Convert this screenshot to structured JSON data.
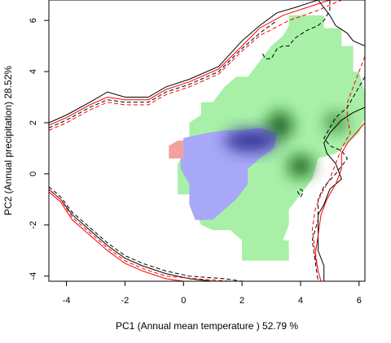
{
  "chart_data": {
    "type": "contour-density",
    "xlabel": "PC1 (Annual mean temperature ) 52.79 %",
    "ylabel": "PC2 (Annual precipitation) 28.52%",
    "xlim": [
      -4.6,
      6.2
    ],
    "ylim": [
      -4.2,
      6.8
    ],
    "xticks": [
      -4,
      -2,
      0,
      2,
      4,
      6
    ],
    "yticks": [
      -4,
      -2,
      0,
      2,
      4,
      6
    ],
    "x_tick_labels": [
      "-4",
      "-2",
      "0",
      "2",
      "4",
      "6"
    ],
    "y_tick_labels": [
      "-4",
      "-2",
      "0",
      "2",
      "4",
      "6"
    ],
    "grid": false,
    "legend": "none",
    "colors": {
      "green_region": "#a8f0a8",
      "green_dense": "#0a5a0a",
      "blue_region": "#a8a8f8",
      "blue_dense": "#28288a",
      "overlap_region": "#f4a0a0",
      "contour_1": "#000000",
      "contour_2": "#ff0000"
    },
    "series": [
      {
        "kind": "region",
        "color": "#a8f0a8",
        "points": [
          [
            3.6,
            6.2
          ],
          [
            4.8,
            6.2
          ],
          [
            4.8,
            5.7
          ],
          [
            5.4,
            5.7
          ],
          [
            5.4,
            5.0
          ],
          [
            5.8,
            5.0
          ],
          [
            5.8,
            4.0
          ],
          [
            6.0,
            4.0
          ],
          [
            6.2,
            3.2
          ],
          [
            6.2,
            2.2
          ],
          [
            6.0,
            1.6
          ],
          [
            5.6,
            1.2
          ],
          [
            5.2,
            0.8
          ],
          [
            4.6,
            0.6
          ],
          [
            4.4,
            -0.2
          ],
          [
            4.0,
            -0.8
          ],
          [
            3.6,
            -1.4
          ],
          [
            3.6,
            -2.0
          ],
          [
            3.4,
            -2.6
          ],
          [
            3.2,
            -2.6
          ],
          [
            3.6,
            -2.6
          ],
          [
            3.6,
            -3.4
          ],
          [
            2.6,
            -3.4
          ],
          [
            2.0,
            -3.4
          ],
          [
            2.0,
            -2.6
          ],
          [
            1.6,
            -2.2
          ],
          [
            1.0,
            -2.2
          ],
          [
            0.6,
            -2.0
          ],
          [
            0.4,
            -1.4
          ],
          [
            0.2,
            -0.8
          ],
          [
            -0.2,
            -0.8
          ],
          [
            -0.2,
            0.4
          ],
          [
            0.2,
            1.0
          ],
          [
            0.2,
            2.0
          ],
          [
            0.6,
            2.3
          ],
          [
            0.6,
            2.8
          ],
          [
            1.0,
            2.8
          ],
          [
            1.4,
            3.4
          ],
          [
            1.8,
            3.8
          ],
          [
            2.2,
            3.8
          ],
          [
            2.6,
            4.4
          ],
          [
            3.0,
            5.0
          ],
          [
            3.4,
            5.4
          ],
          [
            3.6,
            5.8
          ]
        ]
      },
      {
        "kind": "region",
        "color": "#a8a8f8",
        "points": [
          [
            0.0,
            1.4
          ],
          [
            0.8,
            1.6
          ],
          [
            1.4,
            1.7
          ],
          [
            2.0,
            1.7
          ],
          [
            2.6,
            1.8
          ],
          [
            3.2,
            1.6
          ],
          [
            3.1,
            1.0
          ],
          [
            2.6,
            0.6
          ],
          [
            2.2,
            0.2
          ],
          [
            2.2,
            -0.4
          ],
          [
            1.8,
            -1.0
          ],
          [
            1.4,
            -1.4
          ],
          [
            1.0,
            -1.8
          ],
          [
            0.4,
            -1.8
          ],
          [
            0.2,
            -1.2
          ],
          [
            0.2,
            -0.4
          ],
          [
            -0.1,
            0.2
          ],
          [
            -0.1,
            0.8
          ]
        ]
      },
      {
        "kind": "region",
        "color": "#f4a0a0",
        "points": [
          [
            -0.5,
            0.6
          ],
          [
            -0.5,
            1.1
          ],
          [
            -0.2,
            1.3
          ],
          [
            0.0,
            1.3
          ],
          [
            0.0,
            0.6
          ]
        ]
      },
      {
        "kind": "contour",
        "color": "#000000",
        "dash": "solid",
        "points": [
          [
            -4.6,
            2.0
          ],
          [
            -4.0,
            2.3
          ],
          [
            -3.2,
            2.8
          ],
          [
            -2.6,
            3.2
          ],
          [
            -2.0,
            3.0
          ],
          [
            -1.2,
            3.0
          ],
          [
            -0.6,
            3.4
          ],
          [
            0.2,
            3.7
          ],
          [
            1.2,
            4.2
          ],
          [
            2.0,
            5.2
          ],
          [
            2.6,
            5.8
          ],
          [
            3.2,
            6.3
          ],
          [
            3.8,
            6.5
          ],
          [
            4.6,
            6.8
          ]
        ]
      },
      {
        "kind": "contour",
        "color": "#ff0000",
        "dash": "solid",
        "points": [
          [
            -4.6,
            1.9
          ],
          [
            -4.0,
            2.2
          ],
          [
            -3.2,
            2.7
          ],
          [
            -2.6,
            3.0
          ],
          [
            -2.0,
            2.9
          ],
          [
            -1.2,
            2.9
          ],
          [
            -0.6,
            3.3
          ],
          [
            0.2,
            3.6
          ],
          [
            1.2,
            4.1
          ],
          [
            2.0,
            5.0
          ],
          [
            2.6,
            5.7
          ],
          [
            3.4,
            6.2
          ],
          [
            4.2,
            6.5
          ],
          [
            5.0,
            6.8
          ]
        ]
      },
      {
        "kind": "contour",
        "color": "#000000",
        "dash": "dashed",
        "points": [
          [
            -4.6,
            1.8
          ],
          [
            -4.0,
            2.1
          ],
          [
            -3.2,
            2.6
          ],
          [
            -2.6,
            2.9
          ],
          [
            -2.0,
            2.8
          ],
          [
            -1.2,
            2.8
          ],
          [
            -0.6,
            3.2
          ],
          [
            0.2,
            3.5
          ],
          [
            1.2,
            4.0
          ],
          [
            2.0,
            4.9
          ],
          [
            2.6,
            5.5
          ],
          [
            3.2,
            6.0
          ]
        ]
      },
      {
        "kind": "contour",
        "color": "#ff0000",
        "dash": "dashed",
        "points": [
          [
            -4.6,
            1.7
          ],
          [
            -4.0,
            2.0
          ],
          [
            -3.2,
            2.5
          ],
          [
            -2.6,
            2.8
          ],
          [
            -2.0,
            2.7
          ],
          [
            -1.2,
            2.7
          ],
          [
            -0.6,
            3.1
          ],
          [
            0.2,
            3.4
          ],
          [
            1.2,
            3.9
          ],
          [
            2.0,
            4.8
          ],
          [
            2.6,
            5.4
          ],
          [
            3.6,
            6.0
          ],
          [
            4.6,
            6.4
          ],
          [
            5.4,
            6.8
          ]
        ]
      },
      {
        "kind": "contour",
        "color": "#000000",
        "dash": "solid",
        "points": [
          [
            -4.6,
            -0.6
          ],
          [
            -4.2,
            -1.0
          ],
          [
            -3.8,
            -1.6
          ],
          [
            -3.2,
            -2.2
          ],
          [
            -2.6,
            -2.8
          ],
          [
            -2.0,
            -3.3
          ],
          [
            -1.4,
            -3.6
          ],
          [
            -0.6,
            -3.9
          ],
          [
            0.2,
            -4.1
          ],
          [
            1.0,
            -4.2
          ]
        ]
      },
      {
        "kind": "contour",
        "color": "#ff0000",
        "dash": "solid",
        "points": [
          [
            -4.6,
            -0.7
          ],
          [
            -4.2,
            -1.1
          ],
          [
            -3.8,
            -1.8
          ],
          [
            -3.2,
            -2.4
          ],
          [
            -2.6,
            -3.0
          ],
          [
            -2.0,
            -3.5
          ],
          [
            -1.4,
            -3.8
          ],
          [
            -0.6,
            -4.1
          ],
          [
            0.0,
            -4.2
          ]
        ]
      },
      {
        "kind": "contour",
        "color": "#000000",
        "dash": "dashed",
        "points": [
          [
            -4.6,
            -0.5
          ],
          [
            -4.2,
            -0.9
          ],
          [
            -3.8,
            -1.5
          ],
          [
            -3.2,
            -2.1
          ],
          [
            -2.6,
            -2.7
          ],
          [
            -2.0,
            -3.2
          ],
          [
            -1.4,
            -3.5
          ],
          [
            -0.6,
            -3.8
          ],
          [
            0.2,
            -4.0
          ],
          [
            1.4,
            -4.1
          ],
          [
            2.0,
            -4.2
          ]
        ]
      },
      {
        "kind": "contour",
        "color": "#ff0000",
        "dash": "dashed",
        "points": [
          [
            -4.6,
            -0.6
          ],
          [
            -4.2,
            -1.0
          ],
          [
            -3.8,
            -1.7
          ],
          [
            -3.2,
            -2.3
          ],
          [
            -2.6,
            -2.9
          ],
          [
            -2.0,
            -3.4
          ],
          [
            -1.4,
            -3.7
          ],
          [
            -0.6,
            -4.0
          ],
          [
            0.4,
            -4.1
          ],
          [
            1.6,
            -4.2
          ]
        ]
      },
      {
        "kind": "contour",
        "color": "#000000",
        "dash": "solid",
        "points": [
          [
            4.6,
            6.8
          ],
          [
            5.0,
            6.2
          ],
          [
            5.2,
            5.8
          ],
          [
            5.6,
            5.5
          ],
          [
            5.8,
            5.2
          ],
          [
            6.2,
            5.0
          ]
        ]
      },
      {
        "kind": "contour",
        "color": "#000000",
        "dash": "dashed",
        "points": [
          [
            2.7,
            4.7
          ],
          [
            2.8,
            4.5
          ],
          [
            3.0,
            4.5
          ],
          [
            3.2,
            4.9
          ],
          [
            3.4,
            5.0
          ],
          [
            3.6,
            5.0
          ],
          [
            3.8,
            5.3
          ],
          [
            4.2,
            5.6
          ],
          [
            4.6,
            5.8
          ],
          [
            4.8,
            6.0
          ],
          [
            5.0,
            6.4
          ],
          [
            5.0,
            6.8
          ]
        ]
      },
      {
        "kind": "contour",
        "color": "#000000",
        "dash": "solid",
        "points": [
          [
            6.2,
            2.6
          ],
          [
            5.8,
            2.4
          ],
          [
            5.4,
            2.1
          ],
          [
            5.0,
            1.6
          ],
          [
            4.8,
            1.2
          ],
          [
            4.9,
            0.8
          ],
          [
            5.2,
            0.4
          ],
          [
            5.4,
            -0.2
          ],
          [
            5.0,
            -0.6
          ],
          [
            4.8,
            -1.2
          ],
          [
            4.6,
            -1.6
          ],
          [
            4.6,
            -2.4
          ],
          [
            4.6,
            -3.0
          ],
          [
            4.8,
            -3.6
          ],
          [
            4.8,
            -4.2
          ]
        ]
      },
      {
        "kind": "contour",
        "color": "#ff0000",
        "dash": "solid",
        "points": [
          [
            6.2,
            2.0
          ],
          [
            5.9,
            1.6
          ],
          [
            5.6,
            1.2
          ],
          [
            5.4,
            0.8
          ],
          [
            5.4,
            0.2
          ],
          [
            5.2,
            -0.4
          ],
          [
            4.9,
            -1.0
          ],
          [
            4.7,
            -1.6
          ],
          [
            4.6,
            -2.4
          ],
          [
            4.5,
            -3.2
          ],
          [
            4.6,
            -3.8
          ],
          [
            4.7,
            -4.2
          ]
        ]
      },
      {
        "kind": "contour",
        "color": "#000000",
        "dash": "dashed",
        "points": [
          [
            6.2,
            3.8
          ],
          [
            6.0,
            3.4
          ],
          [
            5.8,
            3.0
          ],
          [
            5.6,
            2.6
          ],
          [
            5.2,
            2.2
          ],
          [
            5.0,
            1.8
          ],
          [
            4.8,
            1.4
          ],
          [
            5.0,
            1.1
          ],
          [
            5.4,
            0.9
          ],
          [
            5.6,
            0.6
          ],
          [
            5.2,
            0.0
          ],
          [
            4.8,
            -0.5
          ],
          [
            4.6,
            -1.0
          ],
          [
            4.6,
            -1.8
          ],
          [
            4.4,
            -2.6
          ],
          [
            4.5,
            -3.4
          ],
          [
            4.6,
            -4.2
          ]
        ]
      },
      {
        "kind": "contour",
        "color": "#ff0000",
        "dash": "dashed",
        "points": [
          [
            6.2,
            4.6
          ],
          [
            6.0,
            4.0
          ],
          [
            5.8,
            3.4
          ],
          [
            5.6,
            2.8
          ],
          [
            5.6,
            2.2
          ],
          [
            5.7,
            1.6
          ],
          [
            5.4,
            1.0
          ],
          [
            5.2,
            0.4
          ],
          [
            5.0,
            -0.2
          ],
          [
            4.7,
            -0.8
          ],
          [
            4.5,
            -1.4
          ],
          [
            4.4,
            -2.2
          ],
          [
            4.5,
            -3.0
          ],
          [
            4.6,
            -3.8
          ]
        ]
      },
      {
        "kind": "contour",
        "color": "#000000",
        "dash": "dashed",
        "points": [
          [
            4.0,
            -0.9
          ],
          [
            4.1,
            -0.7
          ],
          [
            4.0,
            -0.6
          ],
          [
            3.9,
            -0.7
          ],
          [
            4.0,
            -0.9
          ]
        ]
      }
    ],
    "density_peaks": [
      {
        "x": 3.3,
        "y": 1.9,
        "color": "#0a5a0a",
        "rx": 0.45,
        "ry": 0.55
      },
      {
        "x": 4.0,
        "y": 0.3,
        "color": "#0a5a0a",
        "rx": 0.45,
        "ry": 0.45
      },
      {
        "x": 5.2,
        "y": 2.0,
        "color": "#3a8a3a",
        "rx": 0.4,
        "ry": 0.4
      },
      {
        "x": 2.3,
        "y": 1.3,
        "color": "#28288a",
        "rx": 0.9,
        "ry": 0.45
      }
    ]
  }
}
